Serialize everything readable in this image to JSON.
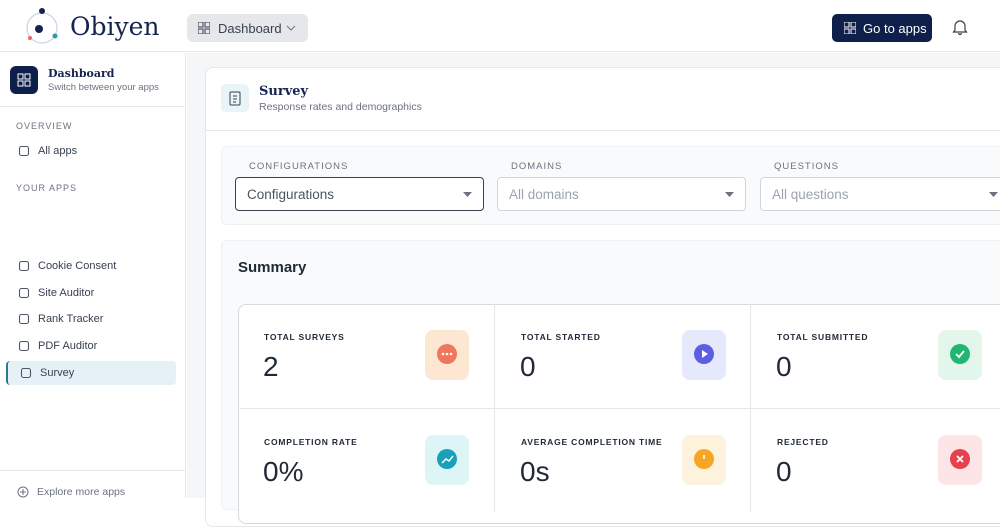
{
  "header": {
    "logo": "Obiyen",
    "dashboard_menu": "Dashboard",
    "go_to_apps": "Go to apps"
  },
  "sidebar": {
    "dashboard": {
      "title": "Dashboard",
      "subtitle": "Switch between your apps"
    },
    "overview_label": "OVERVIEW",
    "overview_items": [
      "All apps"
    ],
    "apps_label": "YOUR APPS",
    "apps": [
      "Cookie Consent",
      "Site Auditor",
      "Rank Tracker",
      "PDF Auditor",
      "Survey"
    ],
    "explore": "Explore more apps"
  },
  "page": {
    "title": "Survey",
    "subtitle": "Response rates and demographics"
  },
  "filters": [
    {
      "label": "CONFIGURATIONS",
      "placeholder": "Configurations"
    },
    {
      "label": "DOMAINS",
      "placeholder": "All domains"
    },
    {
      "label": "QUESTIONS",
      "placeholder": "All questions"
    }
  ],
  "summary": {
    "title": "Summary",
    "stats": [
      {
        "label": "TOTAL SURVEYS",
        "value": "2"
      },
      {
        "label": "TOTAL STARTED",
        "value": "0"
      },
      {
        "label": "TOTAL SUBMITTED",
        "value": "0"
      },
      {
        "label": "COMPLETION RATE",
        "value": "0%"
      },
      {
        "label": "AVERAGE COMPLETION TIME",
        "value": "0s"
      },
      {
        "label": "REJECTED",
        "value": "0"
      }
    ]
  }
}
